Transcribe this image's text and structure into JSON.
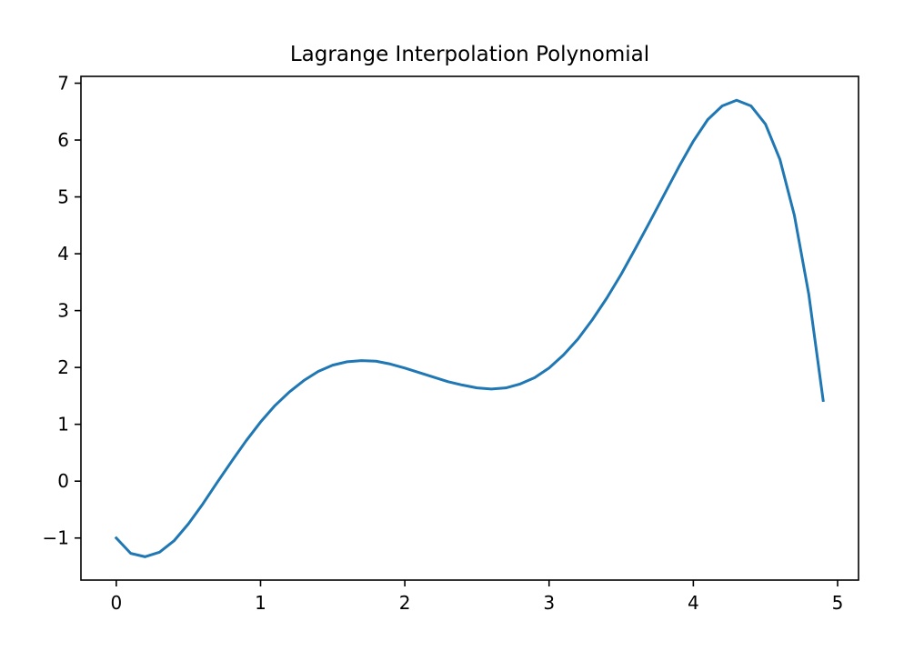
{
  "chart_data": {
    "type": "line",
    "title": "Lagrange Interpolation Polynomial",
    "xlabel": "",
    "ylabel": "",
    "xlim": [
      -0.245,
      5.145
    ],
    "ylim": [
      -1.74,
      7.12
    ],
    "xticks": [
      0,
      1,
      2,
      3,
      4,
      5
    ],
    "yticks": [
      -1,
      0,
      1,
      2,
      3,
      4,
      5,
      6,
      7
    ],
    "xtick_labels": [
      "0",
      "1",
      "2",
      "3",
      "4",
      "5"
    ],
    "ytick_labels": [
      "−1",
      "0",
      "1",
      "2",
      "3",
      "4",
      "5",
      "6",
      "7"
    ],
    "grid": false,
    "legend": "none",
    "line_color": "#1f77b4",
    "series": [
      {
        "x": [
          0.0,
          0.1,
          0.2,
          0.3,
          0.4,
          0.5,
          0.6,
          0.7,
          0.8,
          0.9,
          1.0,
          1.1,
          1.2,
          1.3,
          1.4,
          1.5,
          1.6,
          1.7,
          1.8,
          1.9,
          2.0,
          2.1,
          2.2,
          2.3,
          2.4,
          2.5,
          2.6,
          2.7,
          2.8,
          2.9,
          3.0,
          3.1,
          3.2,
          3.3,
          3.4,
          3.5,
          3.6,
          3.7,
          3.8,
          3.9,
          4.0,
          4.1,
          4.2,
          4.3,
          4.4,
          4.5,
          4.6,
          4.7,
          4.8,
          4.9
        ],
        "values": [
          -1.0,
          -1.27,
          -1.33,
          -1.25,
          -1.05,
          -0.75,
          -0.4,
          -0.02,
          0.35,
          0.71,
          1.04,
          1.33,
          1.57,
          1.77,
          1.93,
          2.04,
          2.1,
          2.12,
          2.11,
          2.06,
          1.99,
          1.91,
          1.83,
          1.75,
          1.69,
          1.64,
          1.62,
          1.64,
          1.71,
          1.82,
          1.99,
          2.22,
          2.5,
          2.84,
          3.22,
          3.64,
          4.1,
          4.57,
          5.05,
          5.53,
          5.98,
          6.36,
          6.6,
          6.7,
          6.6,
          6.28,
          5.66,
          4.68,
          3.29,
          1.42
        ]
      }
    ]
  }
}
